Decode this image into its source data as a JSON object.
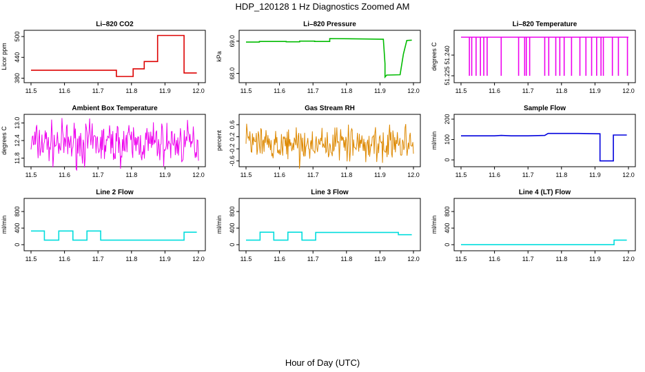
{
  "figure": {
    "title": "HDP_120128  1 Hz Diagnostics Zoomed AM",
    "xlabel": "Hour of Day (UTC)"
  },
  "chart_data": [
    {
      "type": "line",
      "title": "Li–820 CO2",
      "ylabel": "Licor ppm",
      "color": "#dd0000",
      "xlim": [
        11.5,
        12.0
      ],
      "ylim": [
        375,
        510
      ],
      "xticks": [
        "11.5",
        "11.6",
        "11.7",
        "11.8",
        "11.9",
        "12.0"
      ],
      "yticks": [
        380,
        440,
        500
      ],
      "x": [
        11.5,
        11.755,
        11.755,
        11.805,
        11.805,
        11.838,
        11.838,
        11.878,
        11.878,
        11.957,
        11.957,
        11.995
      ],
      "y": [
        403,
        403,
        385,
        385,
        407,
        407,
        428,
        428,
        503,
        503,
        395,
        395
      ]
    },
    {
      "type": "line",
      "title": "Li–820 Pressure",
      "ylabel": "kPa",
      "color": "#00bb00",
      "xlim": [
        11.5,
        12.0
      ],
      "ylim": [
        67.8,
        69.25
      ],
      "xticks": [
        "11.5",
        "11.6",
        "11.7",
        "11.8",
        "11.9",
        "12.0"
      ],
      "yticks": [
        "68.0",
        "69.0"
      ],
      "x": [
        11.5,
        11.54,
        11.54,
        11.62,
        11.62,
        11.66,
        11.66,
        11.705,
        11.705,
        11.75,
        11.75,
        11.91,
        11.915,
        11.915,
        11.92,
        11.96,
        11.97,
        11.98,
        11.995
      ],
      "y": [
        68.97,
        68.97,
        68.99,
        68.99,
        68.98,
        68.98,
        69.0,
        69.0,
        68.99,
        68.99,
        69.08,
        69.06,
        68.3,
        67.89,
        67.95,
        67.96,
        68.6,
        69.02,
        69.03
      ]
    },
    {
      "type": "spikes",
      "title": "Li–820 Temperature",
      "ylabel": "degrees C",
      "color": "#ee00ee",
      "xlim": [
        11.5,
        12.0
      ],
      "ylim": [
        51.222,
        51.256
      ],
      "xticks": [
        "11.5",
        "11.6",
        "11.7",
        "11.8",
        "11.9",
        "12.0"
      ],
      "yticks": [
        "51.225",
        "51.240"
      ],
      "baseline": 51.253,
      "low": 51.225,
      "spikes_x": [
        11.525,
        11.532,
        11.545,
        11.558,
        11.568,
        11.578,
        11.62,
        11.672,
        11.69,
        11.695,
        11.705,
        11.75,
        11.762,
        11.783,
        11.795,
        11.808,
        11.83,
        11.855,
        11.873,
        11.89,
        11.905,
        11.918,
        11.925,
        11.952,
        11.97,
        11.997
      ]
    },
    {
      "type": "noise",
      "title": "Ambient Box Temperature",
      "ylabel": "degrees C",
      "color": "#ee00ee",
      "xlim": [
        11.5,
        12.0
      ],
      "ylim": [
        11.6,
        13.2
      ],
      "xticks": [
        "11.5",
        "11.6",
        "11.7",
        "11.8",
        "11.9",
        "12.0"
      ],
      "yticks": [
        "11.8",
        "12.4",
        "13.0"
      ],
      "mean": 12.3,
      "spread": 0.7,
      "seed": 7
    },
    {
      "type": "noise",
      "title": "Gas Stream RH",
      "ylabel": "percent",
      "color": "#dd8800",
      "xlim": [
        11.5,
        12.0
      ],
      "ylim": [
        -0.7,
        0.85
      ],
      "xticks": [
        "11.5",
        "11.6",
        "11.7",
        "11.8",
        "11.9",
        "12.0"
      ],
      "yticks": [
        "-0.6",
        "-0.2",
        "0.2",
        "0.6"
      ],
      "mean": -0.05,
      "spread": 0.55,
      "seed": 13
    },
    {
      "type": "line",
      "title": "Sample Flow",
      "ylabel": "ml/min",
      "color": "#0000dd",
      "xlim": [
        11.5,
        12.0
      ],
      "ylim": [
        -20,
        210
      ],
      "xticks": [
        "11.5",
        "11.6",
        "11.7",
        "11.8",
        "11.9",
        "12.0"
      ],
      "yticks": [
        0,
        100,
        200
      ],
      "x": [
        11.5,
        11.6,
        11.62,
        11.65,
        11.7,
        11.75,
        11.76,
        11.85,
        11.91,
        11.915,
        11.915,
        11.955,
        11.955,
        11.995
      ],
      "y": [
        118,
        118,
        120,
        118,
        118,
        120,
        130,
        130,
        128,
        128,
        -5,
        -5,
        122,
        122
      ]
    },
    {
      "type": "line",
      "title": "Line 2 Flow",
      "ylabel": "ml/min",
      "color": "#00dddd",
      "xlim": [
        11.5,
        12.0
      ],
      "ylim": [
        -80,
        1050
      ],
      "xticks": [
        "11.5",
        "11.6",
        "11.7",
        "11.8",
        "11.9",
        "12.0"
      ],
      "yticks": [
        0,
        400,
        800
      ],
      "x": [
        11.5,
        11.54,
        11.54,
        11.583,
        11.583,
        11.625,
        11.625,
        11.667,
        11.667,
        11.708,
        11.708,
        11.957,
        11.957,
        11.995
      ],
      "y": [
        330,
        330,
        110,
        110,
        330,
        330,
        110,
        110,
        330,
        330,
        110,
        110,
        300,
        300
      ]
    },
    {
      "type": "line",
      "title": "Line 3 Flow",
      "ylabel": "ml/min",
      "color": "#00dddd",
      "xlim": [
        11.5,
        12.0
      ],
      "ylim": [
        -80,
        1050
      ],
      "xticks": [
        "11.5",
        "11.6",
        "11.7",
        "11.8",
        "11.9",
        "12.0"
      ],
      "yticks": [
        0,
        400,
        800
      ],
      "x": [
        11.5,
        11.542,
        11.542,
        11.583,
        11.583,
        11.625,
        11.625,
        11.667,
        11.667,
        11.708,
        11.708,
        11.955,
        11.955,
        11.995
      ],
      "y": [
        110,
        110,
        300,
        300,
        110,
        110,
        300,
        300,
        110,
        110,
        295,
        295,
        240,
        240
      ]
    },
    {
      "type": "line",
      "title": "Line 4 (LT) Flow",
      "ylabel": "ml/min",
      "color": "#00dddd",
      "xlim": [
        11.5,
        12.0
      ],
      "ylim": [
        -80,
        1050
      ],
      "xticks": [
        "11.5",
        "11.6",
        "11.7",
        "11.8",
        "11.9",
        "12.0"
      ],
      "yticks": [
        0,
        400,
        800
      ],
      "x": [
        11.5,
        11.957,
        11.957,
        11.995
      ],
      "y": [
        0,
        0,
        110,
        110
      ]
    }
  ]
}
